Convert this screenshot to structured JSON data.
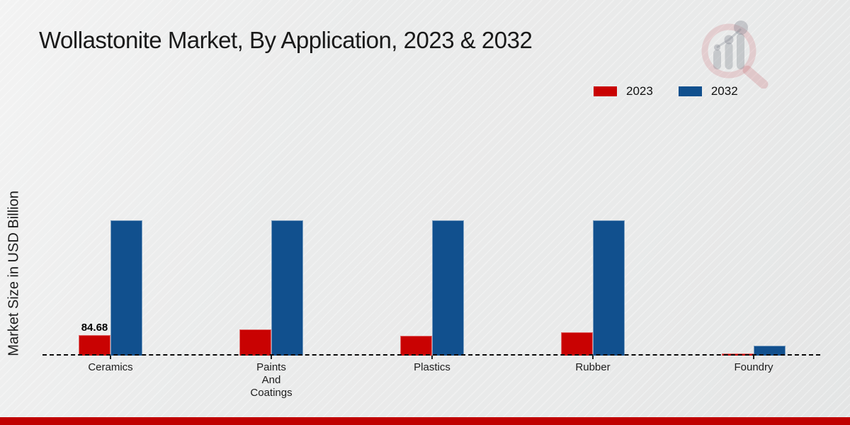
{
  "title": "Wollastonite Market, By Application, 2023 & 2032",
  "ylabel": "Market Size in USD Billion",
  "legend": [
    {
      "label": "2023",
      "color": "#c90202"
    },
    {
      "label": "2032",
      "color": "#11508e"
    }
  ],
  "footer_color": "#c00000",
  "chart_data": {
    "type": "bar",
    "title": "Wollastonite Market, By Application, 2023 & 2032",
    "xlabel": "",
    "ylabel": "Market Size in USD Billion",
    "categories": [
      "Ceramics",
      "Paints And Coatings",
      "Plastics",
      "Rubber",
      "Foundry"
    ],
    "series": [
      {
        "name": "2023",
        "color": "#c90202",
        "values": [
          84.68,
          108,
          83,
          95,
          8
        ]
      },
      {
        "name": "2032",
        "color": "#11508e",
        "values": [
          557,
          557,
          557,
          557,
          42
        ]
      }
    ],
    "value_labels": [
      {
        "series": "2023",
        "category": "Ceramics",
        "text": "84.68"
      }
    ],
    "baseline_style": "dashed",
    "grid": false,
    "legend_position": "top-right",
    "ylim": [
      0,
      600
    ]
  }
}
